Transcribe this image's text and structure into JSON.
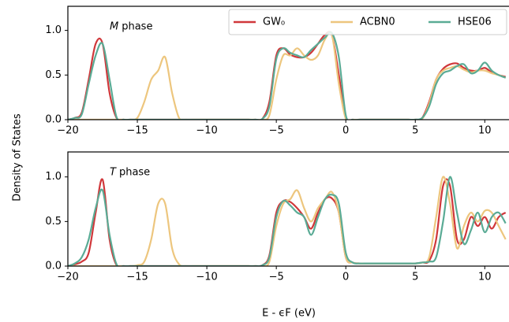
{
  "chart_data": [
    {
      "type": "line",
      "annotation_symbol": "M",
      "annotation": "phase",
      "ylabel": "Density of States",
      "legend": "upper right",
      "x": [
        -20,
        -19.5,
        -19,
        -18.5,
        -18,
        -17.5,
        -17,
        -16.5,
        -16,
        -15.5,
        -15,
        -14.5,
        -14,
        -13.5,
        -13,
        -12.5,
        -12,
        -11.5,
        -11,
        -10.5,
        -10,
        -9.5,
        -9,
        -8.5,
        -8,
        -7.5,
        -7,
        -6.5,
        -6,
        -5.5,
        -5,
        -4.5,
        -4,
        -3.5,
        -3,
        -2.5,
        -2,
        -1.5,
        -1,
        -0.5,
        0,
        0.5,
        1,
        1.5,
        2,
        2.5,
        3,
        3.5,
        4,
        4.5,
        5,
        5.5,
        6,
        6.5,
        7,
        7.5,
        8,
        8.5,
        9,
        9.5,
        10,
        10.5,
        11,
        11.5
      ],
      "xlim": [
        -20,
        11.8
      ],
      "xticks": [
        {
          "value": -20,
          "label": "−20"
        },
        {
          "value": -15,
          "label": "−15"
        },
        {
          "value": -10,
          "label": "−10"
        },
        {
          "value": -5,
          "label": "−5"
        },
        0,
        5,
        10
      ],
      "ylim": [
        0,
        1.27
      ],
      "yticks": [
        {
          "value": 0,
          "label": "0.0"
        },
        {
          "value": 0.5,
          "label": "0.5"
        },
        {
          "value": 1,
          "label": "1.0"
        }
      ],
      "series": [
        {
          "name": "GW₀",
          "color": "#d0373a",
          "values": [
            0,
            0.02,
            0.08,
            0.45,
            0.85,
            0.85,
            0.3,
            0.02,
            0,
            0,
            0,
            0,
            0,
            0,
            0,
            0,
            0,
            0,
            0,
            0,
            0,
            0,
            0,
            0,
            0,
            0,
            0,
            0,
            0.01,
            0.2,
            0.72,
            0.8,
            0.73,
            0.7,
            0.7,
            0.75,
            0.85,
            0.95,
            0.95,
            0.5,
            0.02,
            0,
            0,
            0,
            0,
            0,
            0,
            0,
            0,
            0,
            0,
            0.02,
            0.2,
            0.45,
            0.57,
            0.62,
            0.63,
            0.58,
            0.55,
            0.55,
            0.58,
            0.53,
            0.5,
            0.48
          ]
        },
        {
          "name": "ACBN0",
          "color": "#edc67e",
          "values": [
            0,
            0,
            0,
            0,
            0,
            0,
            0,
            0,
            0,
            0,
            0.02,
            0.2,
            0.45,
            0.55,
            0.7,
            0.3,
            0.02,
            0,
            0,
            0,
            0,
            0,
            0,
            0,
            0,
            0,
            0,
            0,
            0,
            0.05,
            0.45,
            0.72,
            0.72,
            0.8,
            0.72,
            0.67,
            0.72,
            0.9,
            0.95,
            0.4,
            0.01,
            0,
            0,
            0,
            0,
            0,
            0,
            0,
            0,
            0,
            0,
            0.01,
            0.18,
            0.45,
            0.55,
            0.58,
            0.6,
            0.56,
            0.53,
            0.55,
            0.55,
            0.52,
            0.5,
            0.47
          ]
        },
        {
          "name": "HSE06",
          "color": "#5aab95",
          "values": [
            0,
            0.02,
            0.06,
            0.4,
            0.72,
            0.85,
            0.45,
            0.03,
            0,
            0,
            0,
            0,
            0,
            0,
            0,
            0,
            0,
            0,
            0,
            0,
            0,
            0,
            0,
            0,
            0,
            0,
            0,
            0,
            0.01,
            0.15,
            0.68,
            0.8,
            0.75,
            0.72,
            0.7,
            0.78,
            0.85,
            0.92,
            0.97,
            0.7,
            0.05,
            0,
            0,
            0,
            0,
            0,
            0,
            0,
            0,
            0,
            0,
            0.02,
            0.15,
            0.4,
            0.52,
            0.55,
            0.6,
            0.62,
            0.52,
            0.55,
            0.64,
            0.55,
            0.5,
            0.47
          ]
        }
      ]
    },
    {
      "type": "line",
      "annotation_symbol": "T",
      "annotation": "phase",
      "xlabel": "E - ϵF (eV)",
      "x": [
        -20,
        -19.5,
        -19,
        -18.5,
        -18,
        -17.5,
        -17,
        -16.5,
        -16,
        -15.5,
        -15,
        -14.5,
        -14,
        -13.5,
        -13,
        -12.5,
        -12,
        -11.5,
        -11,
        -10.5,
        -10,
        -9.5,
        -9,
        -8.5,
        -8,
        -7.5,
        -7,
        -6.5,
        -6,
        -5.5,
        -5,
        -4.5,
        -4,
        -3.5,
        -3,
        -2.5,
        -2,
        -1.5,
        -1,
        -0.5,
        0,
        0.5,
        1,
        1.5,
        2,
        2.5,
        3,
        3.5,
        4,
        4.5,
        5,
        5.5,
        6,
        6.5,
        7,
        7.5,
        8,
        8.5,
        9,
        9.5,
        10,
        10.5,
        11,
        11.5
      ],
      "xlim": [
        -20,
        11.8
      ],
      "xticks": [
        {
          "value": -20,
          "label": "−20"
        },
        {
          "value": -15,
          "label": "−15"
        },
        {
          "value": -10,
          "label": "−10"
        },
        {
          "value": -5,
          "label": "−5"
        },
        0,
        5,
        10
      ],
      "ylim": [
        0,
        1.28
      ],
      "yticks": [
        {
          "value": 0,
          "label": "0.0"
        },
        {
          "value": 0.5,
          "label": "0.5"
        },
        {
          "value": 1,
          "label": "1.0"
        }
      ],
      "series": [
        {
          "name": "GW₀",
          "color": "#d0373a",
          "values": [
            0,
            0.02,
            0.05,
            0.15,
            0.6,
            0.97,
            0.3,
            0.01,
            0,
            0,
            0,
            0,
            0,
            0,
            0,
            0,
            0,
            0,
            0,
            0,
            0,
            0,
            0,
            0,
            0,
            0,
            0,
            0,
            0.01,
            0.12,
            0.6,
            0.73,
            0.72,
            0.65,
            0.55,
            0.42,
            0.6,
            0.75,
            0.76,
            0.6,
            0.1,
            0.04,
            0.03,
            0.03,
            0.03,
            0.03,
            0.03,
            0.03,
            0.03,
            0.03,
            0.03,
            0.04,
            0.06,
            0.3,
            0.9,
            0.9,
            0.3,
            0.3,
            0.55,
            0.45,
            0.55,
            0.42,
            0.55,
            0.6
          ]
        },
        {
          "name": "ACBN0",
          "color": "#edc67e",
          "values": [
            0,
            0,
            0,
            0,
            0,
            0,
            0,
            0,
            0,
            0,
            0.01,
            0.05,
            0.3,
            0.7,
            0.7,
            0.2,
            0.02,
            0,
            0,
            0,
            0,
            0,
            0,
            0,
            0,
            0,
            0,
            0,
            0,
            0.05,
            0.45,
            0.7,
            0.75,
            0.85,
            0.65,
            0.5,
            0.65,
            0.75,
            0.83,
            0.6,
            0.1,
            0.04,
            0.03,
            0.03,
            0.03,
            0.03,
            0.03,
            0.03,
            0.03,
            0.03,
            0.03,
            0.04,
            0.1,
            0.55,
            1.0,
            0.7,
            0.2,
            0.45,
            0.6,
            0.5,
            0.62,
            0.6,
            0.45,
            0.3
          ]
        },
        {
          "name": "HSE06",
          "color": "#5aab95",
          "values": [
            0,
            0.03,
            0.1,
            0.3,
            0.65,
            0.85,
            0.35,
            0.02,
            0,
            0,
            0,
            0,
            0,
            0,
            0,
            0,
            0,
            0,
            0,
            0,
            0,
            0,
            0,
            0,
            0,
            0,
            0,
            0,
            0.01,
            0.1,
            0.55,
            0.73,
            0.68,
            0.6,
            0.55,
            0.35,
            0.55,
            0.75,
            0.8,
            0.7,
            0.15,
            0.04,
            0.03,
            0.03,
            0.03,
            0.03,
            0.03,
            0.03,
            0.03,
            0.03,
            0.03,
            0.04,
            0.05,
            0.1,
            0.5,
            1.0,
            0.6,
            0.25,
            0.4,
            0.6,
            0.38,
            0.55,
            0.6,
            0.48
          ]
        }
      ]
    }
  ]
}
